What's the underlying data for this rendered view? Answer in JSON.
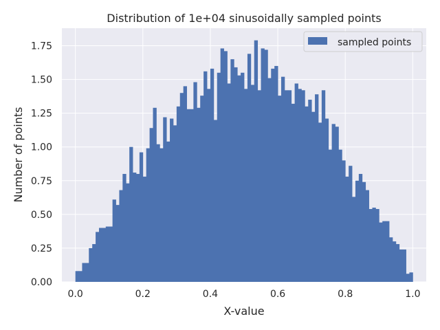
{
  "chart_data": {
    "type": "bar",
    "title": "Distribution of 1e+04 sinusoidally sampled points",
    "xlabel": "X-value",
    "ylabel": "Number of points",
    "xlim": [
      -0.04,
      1.04
    ],
    "ylim": [
      0,
      1.88
    ],
    "xticks": [
      0.0,
      0.2,
      0.4,
      0.6,
      0.8,
      1.0
    ],
    "xtick_labels": [
      "0.0",
      "0.2",
      "0.4",
      "0.6",
      "0.8",
      "1.0"
    ],
    "yticks": [
      0.0,
      0.25,
      0.5,
      0.75,
      1.0,
      1.25,
      1.5,
      1.75
    ],
    "ytick_labels": [
      "0.00",
      "0.25",
      "0.50",
      "0.75",
      "1.00",
      "1.25",
      "1.50",
      "1.75"
    ],
    "grid": true,
    "legend_position": "top-right",
    "series": [
      {
        "name": "sampled points",
        "color": "#4c72b0",
        "bin_start": 0.0,
        "bin_width": 0.01,
        "values": [
          0.08,
          0.08,
          0.14,
          0.14,
          0.25,
          0.28,
          0.37,
          0.4,
          0.4,
          0.41,
          0.41,
          0.61,
          0.57,
          0.68,
          0.8,
          0.73,
          1.0,
          0.81,
          0.8,
          0.96,
          0.78,
          0.99,
          1.14,
          1.29,
          1.02,
          0.99,
          1.22,
          1.04,
          1.21,
          1.16,
          1.3,
          1.4,
          1.45,
          1.28,
          1.28,
          1.48,
          1.29,
          1.38,
          1.56,
          1.43,
          1.58,
          1.2,
          1.55,
          1.73,
          1.71,
          1.47,
          1.65,
          1.59,
          1.53,
          1.55,
          1.43,
          1.69,
          1.46,
          1.79,
          1.42,
          1.73,
          1.72,
          1.51,
          1.58,
          1.6,
          1.38,
          1.52,
          1.42,
          1.42,
          1.32,
          1.47,
          1.43,
          1.42,
          1.3,
          1.35,
          1.26,
          1.39,
          1.18,
          1.42,
          1.21,
          0.98,
          1.17,
          1.15,
          0.98,
          0.9,
          0.78,
          0.86,
          0.63,
          0.75,
          0.8,
          0.74,
          0.68,
          0.54,
          0.55,
          0.54,
          0.44,
          0.45,
          0.45,
          0.33,
          0.3,
          0.28,
          0.24,
          0.24,
          0.06,
          0.07
        ]
      }
    ]
  }
}
